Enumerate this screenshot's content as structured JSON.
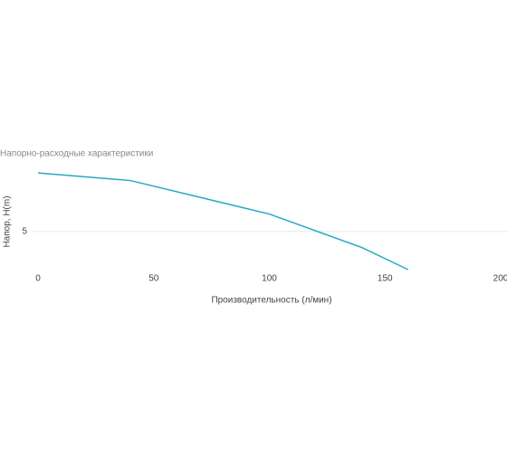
{
  "chart_data": {
    "type": "line",
    "title": "Напорно-расходные характеристики",
    "x_label": "Производительность (л/мин)",
    "y_label": "Напор, H(m)",
    "x": [
      0,
      40,
      100,
      140,
      160
    ],
    "series": [
      {
        "name": "Напор",
        "color": "#26a9c2",
        "values": [
          12.7,
          11.7,
          7.3,
          2.9,
          0
        ]
      }
    ],
    "xlim": [
      0,
      200
    ],
    "xticks": [
      0,
      50,
      100,
      150,
      200
    ],
    "ylim": [
      0,
      14.5
    ],
    "yticks": [
      5
    ],
    "grid": true
  }
}
